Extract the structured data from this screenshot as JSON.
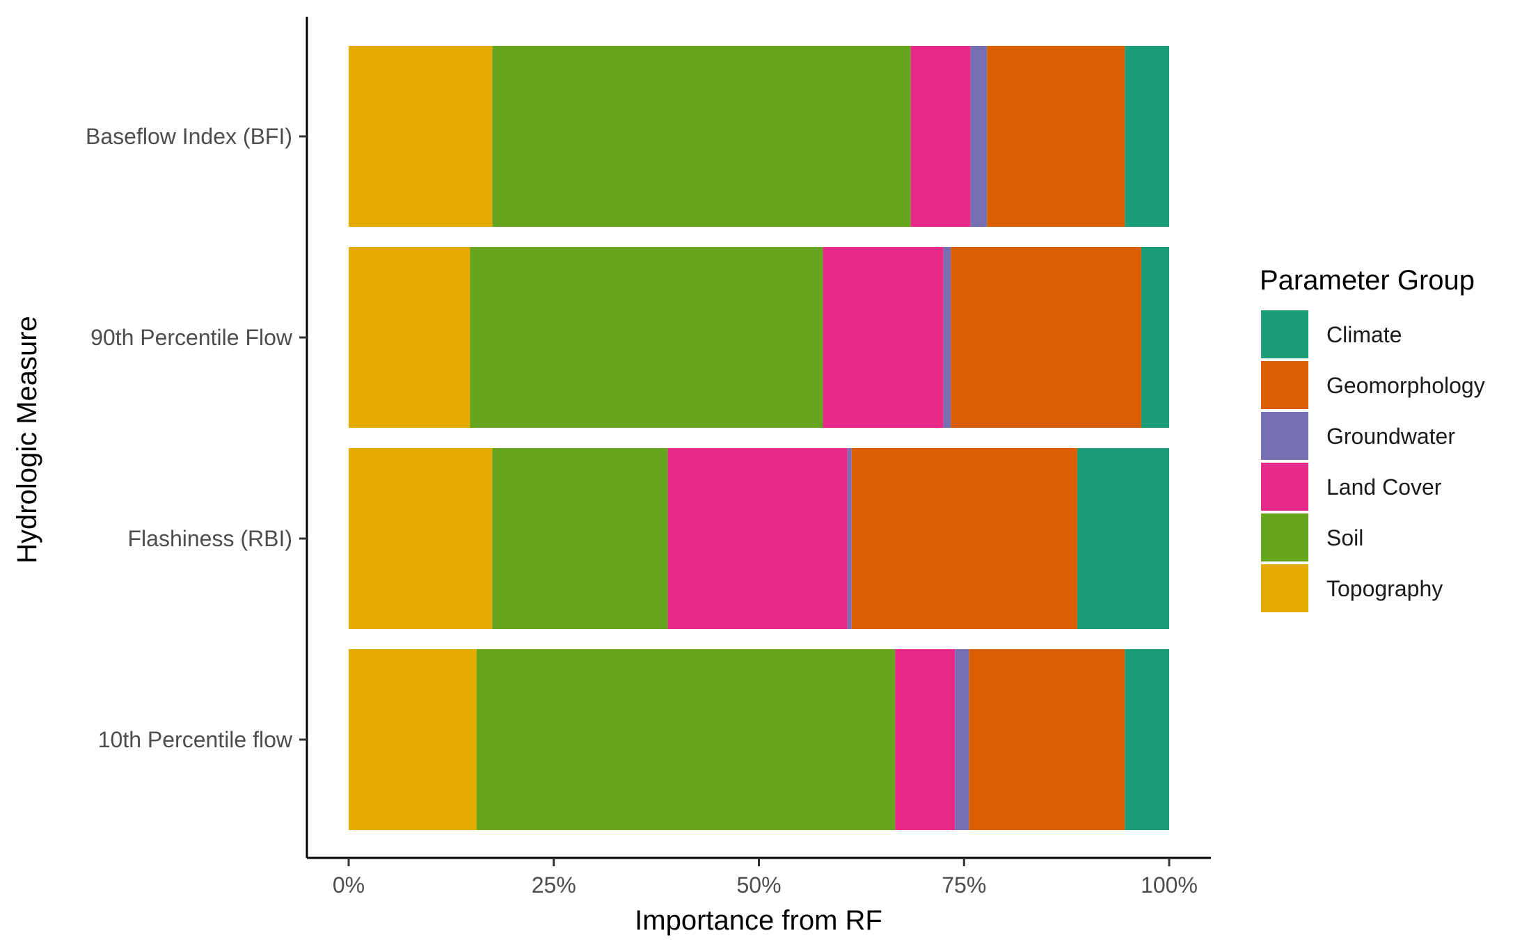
{
  "chart_data": {
    "type": "bar",
    "orientation": "horizontal",
    "stacked": true,
    "percent_scale": true,
    "xlabel": "Importance from RF",
    "ylabel": "Hydrologic Measure",
    "x_ticks": [
      "0%",
      "25%",
      "50%",
      "75%",
      "100%"
    ],
    "xlim": [
      0,
      100
    ],
    "grid": false,
    "categories": [
      "Baseflow Index (BFI)",
      "90th Percentile Flow",
      "Flashiness (RBI)",
      "10th Percentile flow"
    ],
    "series": [
      {
        "name": "Topography",
        "color": "#E6AB02",
        "values": [
          17.5,
          14.8,
          17.5,
          15.6
        ]
      },
      {
        "name": "Soil",
        "color": "#66A61E",
        "values": [
          51.0,
          43.0,
          21.4,
          51.0
        ]
      },
      {
        "name": "Land Cover",
        "color": "#E7298A",
        "values": [
          7.3,
          14.7,
          21.9,
          7.3
        ]
      },
      {
        "name": "Groundwater",
        "color": "#7570B3",
        "values": [
          2.0,
          0.9,
          0.5,
          1.7
        ]
      },
      {
        "name": "Geomorphology",
        "color": "#D95F02",
        "values": [
          16.8,
          23.2,
          27.5,
          19.0
        ]
      },
      {
        "name": "Climate",
        "color": "#1B9E77",
        "values": [
          5.4,
          3.4,
          11.2,
          5.4
        ]
      }
    ],
    "legend": {
      "title": "Parameter Group",
      "position": "right",
      "entries": [
        "Climate",
        "Geomorphology",
        "Groundwater",
        "Land Cover",
        "Soil",
        "Topography"
      ]
    }
  }
}
